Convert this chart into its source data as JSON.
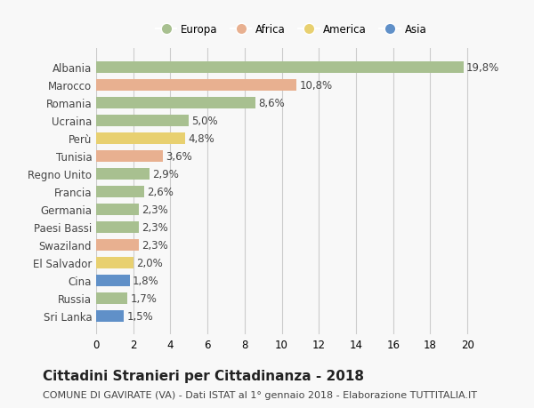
{
  "countries": [
    "Albania",
    "Marocco",
    "Romania",
    "Ucraina",
    "Perù",
    "Tunisia",
    "Regno Unito",
    "Francia",
    "Germania",
    "Paesi Bassi",
    "Swaziland",
    "El Salvador",
    "Cina",
    "Russia",
    "Sri Lanka"
  ],
  "values": [
    19.8,
    10.8,
    8.6,
    5.0,
    4.8,
    3.6,
    2.9,
    2.6,
    2.3,
    2.3,
    2.3,
    2.0,
    1.8,
    1.7,
    1.5
  ],
  "labels": [
    "19,8%",
    "10,8%",
    "8,6%",
    "5,0%",
    "4,8%",
    "3,6%",
    "2,9%",
    "2,6%",
    "2,3%",
    "2,3%",
    "2,3%",
    "2,0%",
    "1,8%",
    "1,7%",
    "1,5%"
  ],
  "continents": [
    "Europa",
    "Africa",
    "Europa",
    "Europa",
    "America",
    "Africa",
    "Europa",
    "Europa",
    "Europa",
    "Europa",
    "Africa",
    "America",
    "Asia",
    "Europa",
    "Asia"
  ],
  "colors": {
    "Europa": "#a8c090",
    "Africa": "#e8b090",
    "America": "#e8d070",
    "Asia": "#6090c8"
  },
  "legend_labels": [
    "Europa",
    "Africa",
    "America",
    "Asia"
  ],
  "legend_colors": [
    "#a8c090",
    "#e8b090",
    "#e8d070",
    "#6090c8"
  ],
  "xlim": [
    0,
    21
  ],
  "xticks": [
    0,
    2,
    4,
    6,
    8,
    10,
    12,
    14,
    16,
    18,
    20
  ],
  "title": "Cittadini Stranieri per Cittadinanza - 2018",
  "subtitle": "COMUNE DI GAVIRATE (VA) - Dati ISTAT al 1° gennaio 2018 - Elaborazione TUTTITALIA.IT",
  "background_color": "#f8f8f8",
  "grid_color": "#cccccc",
  "bar_height": 0.65,
  "label_fontsize": 8.5,
  "tick_fontsize": 8.5,
  "title_fontsize": 11,
  "subtitle_fontsize": 8
}
